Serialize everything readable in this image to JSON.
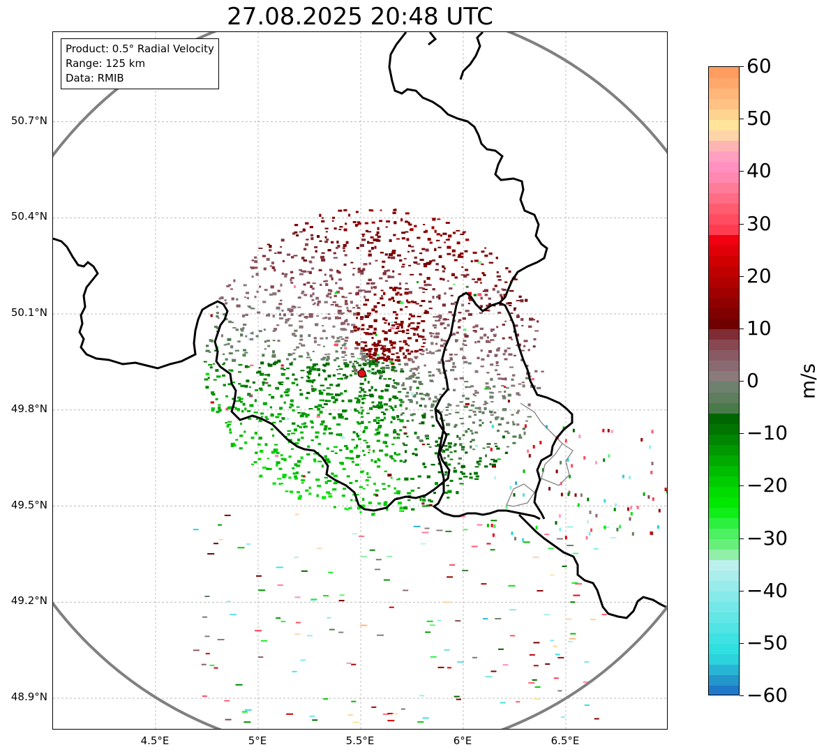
{
  "title": "27.08.2025 20:48 UTC",
  "info": {
    "product": "Product: 0.5° Radial Velocity",
    "range": "Range: 125 km",
    "data": "Data: RMIB"
  },
  "map": {
    "extent": {
      "lon_min": 4.0,
      "lon_max": 7.0,
      "lat_min": 48.8,
      "lat_max": 50.98
    },
    "radar_site": {
      "lon": 5.505,
      "lat": 49.914
    },
    "range_km": 125,
    "lat_ticks": [
      {
        "value": 48.9,
        "label": "48.9°N"
      },
      {
        "value": 49.2,
        "label": "49.2°N"
      },
      {
        "value": 49.5,
        "label": "49.5°N"
      },
      {
        "value": 49.8,
        "label": "49.8°N"
      },
      {
        "value": 50.1,
        "label": "50.1°N"
      },
      {
        "value": 50.4,
        "label": "50.4°N"
      },
      {
        "value": 50.7,
        "label": "50.7°N"
      }
    ],
    "lon_ticks": [
      {
        "value": 4.5,
        "label": "4.5°E"
      },
      {
        "value": 5.0,
        "label": "5°E"
      },
      {
        "value": 5.5,
        "label": "5.5°E"
      },
      {
        "value": 6.0,
        "label": "6°E"
      },
      {
        "value": 6.5,
        "label": "6.5°E"
      }
    ],
    "colors": {
      "range_ring": "#808080",
      "border": "#000000",
      "minor_border": "#808080",
      "gridline": "#b0b0b0",
      "site_marker": "#e0101a"
    }
  },
  "colorbar": {
    "unit": "m/s",
    "min": -60,
    "max": 60,
    "ticks": [
      {
        "value": 60,
        "label": "60"
      },
      {
        "value": 50,
        "label": "50"
      },
      {
        "value": 40,
        "label": "40"
      },
      {
        "value": 30,
        "label": "30"
      },
      {
        "value": 20,
        "label": "20"
      },
      {
        "value": 10,
        "label": "10"
      },
      {
        "value": 0,
        "label": "0"
      },
      {
        "value": -10,
        "label": "−10"
      },
      {
        "value": -20,
        "label": "−20"
      },
      {
        "value": -30,
        "label": "−30"
      },
      {
        "value": -40,
        "label": "−40"
      },
      {
        "value": -50,
        "label": "−50"
      },
      {
        "value": -60,
        "label": "−60"
      }
    ],
    "stops": [
      {
        "from": -60,
        "to": -58,
        "color": "#1f78c8"
      },
      {
        "from": -58,
        "to": -56,
        "color": "#2396cc"
      },
      {
        "from": -56,
        "to": -54,
        "color": "#28b4d4"
      },
      {
        "from": -54,
        "to": -52,
        "color": "#2cd2dc"
      },
      {
        "from": -52,
        "to": -50,
        "color": "#30e0e0"
      },
      {
        "from": -50,
        "to": -48,
        "color": "#3ee2e2"
      },
      {
        "from": -48,
        "to": -46,
        "color": "#50e4e4"
      },
      {
        "from": -46,
        "to": -44,
        "color": "#62e6e6"
      },
      {
        "from": -44,
        "to": -42,
        "color": "#74e8e8"
      },
      {
        "from": -42,
        "to": -40,
        "color": "#86eaea"
      },
      {
        "from": -40,
        "to": -38,
        "color": "#98eceb"
      },
      {
        "from": -38,
        "to": -36,
        "color": "#aaeeec"
      },
      {
        "from": -36,
        "to": -34,
        "color": "#bcf0ee"
      },
      {
        "from": -34,
        "to": -32,
        "color": "#90f0a8"
      },
      {
        "from": -32,
        "to": -30,
        "color": "#66f07a"
      },
      {
        "from": -30,
        "to": -28,
        "color": "#4cf060"
      },
      {
        "from": -28,
        "to": -26,
        "color": "#2cf040"
      },
      {
        "from": -26,
        "to": -24,
        "color": "#10ee18"
      },
      {
        "from": -24,
        "to": -22,
        "color": "#00e800"
      },
      {
        "from": -22,
        "to": -20,
        "color": "#00dc00"
      },
      {
        "from": -20,
        "to": -18,
        "color": "#00cc00"
      },
      {
        "from": -18,
        "to": -16,
        "color": "#00bc00"
      },
      {
        "from": -16,
        "to": -14,
        "color": "#00aa00"
      },
      {
        "from": -14,
        "to": -12,
        "color": "#009800"
      },
      {
        "from": -12,
        "to": -10,
        "color": "#008600"
      },
      {
        "from": -10,
        "to": -8,
        "color": "#007400"
      },
      {
        "from": -8,
        "to": -6,
        "color": "#006600"
      },
      {
        "from": -6,
        "to": -4,
        "color": "#4a7a4a"
      },
      {
        "from": -4,
        "to": -2,
        "color": "#5e7e5e"
      },
      {
        "from": -2,
        "to": 0,
        "color": "#6e806e"
      },
      {
        "from": 0,
        "to": 2,
        "color": "#8a7a7a"
      },
      {
        "from": 2,
        "to": 4,
        "color": "#8a6a72"
      },
      {
        "from": 4,
        "to": 6,
        "color": "#8a5a64"
      },
      {
        "from": 6,
        "to": 8,
        "color": "#884852"
      },
      {
        "from": 8,
        "to": 10,
        "color": "#802c34"
      },
      {
        "from": 10,
        "to": 12,
        "color": "#700000"
      },
      {
        "from": 12,
        "to": 14,
        "color": "#800000"
      },
      {
        "from": 14,
        "to": 16,
        "color": "#900000"
      },
      {
        "from": 16,
        "to": 18,
        "color": "#a00000"
      },
      {
        "from": 18,
        "to": 20,
        "color": "#b00000"
      },
      {
        "from": 20,
        "to": 22,
        "color": "#c00000"
      },
      {
        "from": 22,
        "to": 24,
        "color": "#d00000"
      },
      {
        "from": 24,
        "to": 26,
        "color": "#e00008"
      },
      {
        "from": 26,
        "to": 28,
        "color": "#f00010"
      },
      {
        "from": 28,
        "to": 30,
        "color": "#ff3c50"
      },
      {
        "from": 30,
        "to": 32,
        "color": "#ff4c60"
      },
      {
        "from": 32,
        "to": 34,
        "color": "#ff5c70"
      },
      {
        "from": 34,
        "to": 36,
        "color": "#ff6c84"
      },
      {
        "from": 36,
        "to": 38,
        "color": "#ff7c98"
      },
      {
        "from": 38,
        "to": 40,
        "color": "#ff88b0"
      },
      {
        "from": 40,
        "to": 42,
        "color": "#ff90c0"
      },
      {
        "from": 42,
        "to": 44,
        "color": "#ffa0c0"
      },
      {
        "from": 44,
        "to": 46,
        "color": "#ffb4b4"
      },
      {
        "from": 46,
        "to": 48,
        "color": "#ffd4a8"
      },
      {
        "from": 48,
        "to": 50,
        "color": "#ffe49a"
      },
      {
        "from": 50,
        "to": 52,
        "color": "#ffd490"
      },
      {
        "from": 52,
        "to": 54,
        "color": "#ffc284"
      },
      {
        "from": 54,
        "to": 56,
        "color": "#ffb678"
      },
      {
        "from": 56,
        "to": 58,
        "color": "#ffa86c"
      },
      {
        "from": 58,
        "to": 60,
        "color": "#ff9c60"
      }
    ]
  }
}
